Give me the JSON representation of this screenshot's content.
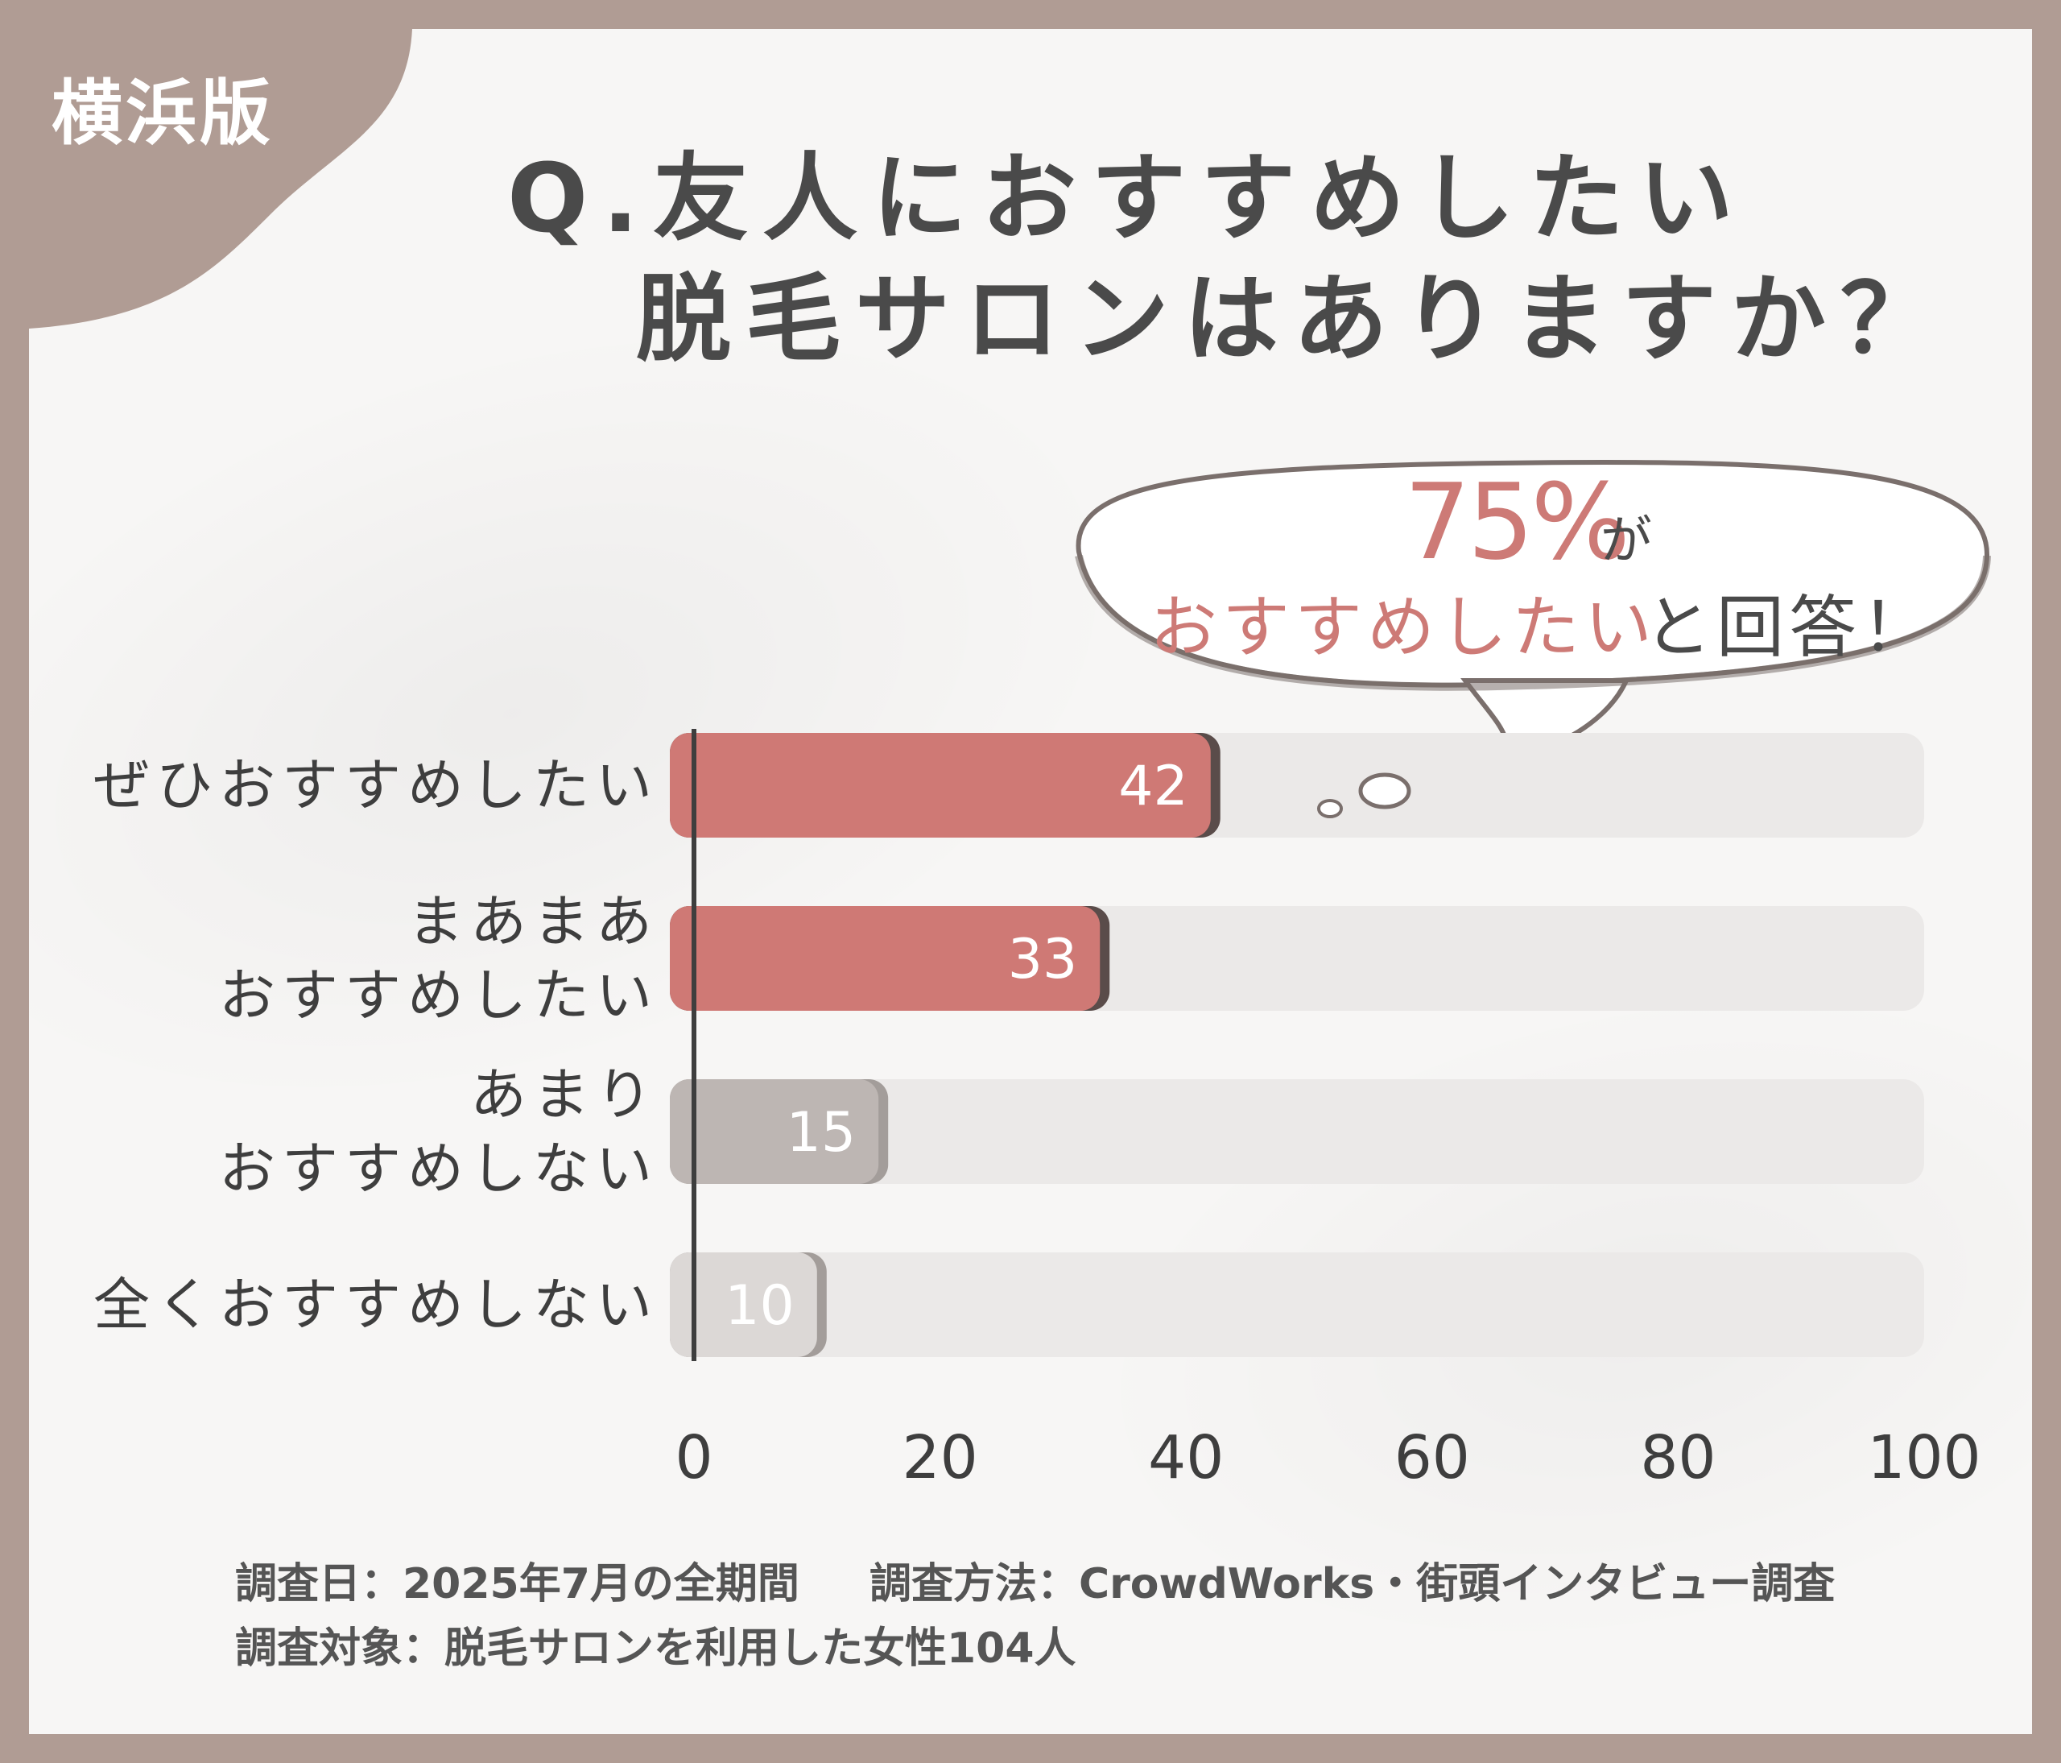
{
  "badge": "横浜版",
  "title": {
    "line1": "Q.友人におすすめしたい",
    "line2": "脱毛サロンはありますか？"
  },
  "callout": {
    "percent": "75%",
    "particle": "が",
    "emphasis": "おすすめしたい",
    "rest": "と回答！"
  },
  "chart_data": {
    "type": "bar",
    "orientation": "horizontal",
    "categories": [
      [
        "ぜひおすすめしたい"
      ],
      [
        "まあまあ",
        "おすすめしたい"
      ],
      [
        "あまり",
        "おすすめしない"
      ],
      [
        "全くおすすめしない"
      ]
    ],
    "values": [
      42,
      33,
      15,
      10
    ],
    "value_labels": [
      "42",
      "33",
      "15",
      "10"
    ],
    "xlim": [
      0,
      100
    ],
    "xticks": [
      "0",
      "20",
      "40",
      "60",
      "80",
      "100"
    ],
    "colors": [
      "#cf7975",
      "#cf7975",
      "#bdb6b3",
      "#dcd8d6"
    ],
    "track_color": "#ebe9e8"
  },
  "footer": {
    "date": "調査日：2025年7月の全期間",
    "method": "調査方法：CrowdWorks・街頭インタビュー調査",
    "target": "調査対象：脱毛サロンを利用した女性104人"
  }
}
